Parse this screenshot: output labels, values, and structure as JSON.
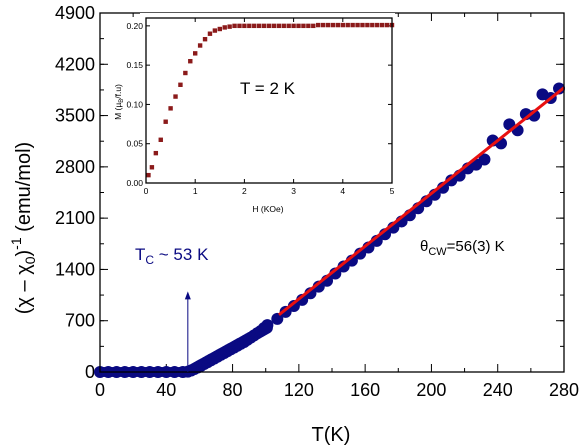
{
  "chart_data": [
    {
      "type": "scatter",
      "xlabel": "T(K)",
      "ylabel": "(χ − χ₀)⁻¹ (emu/mol)",
      "ylabel_parts": {
        "base": "(χ – χ",
        "sub": "0",
        "close": ")",
        "sup": "-1",
        "unit": " (emu/mol)"
      },
      "xlim": [
        0,
        280
      ],
      "ylim": [
        0,
        4900
      ],
      "x_ticks": [
        "0",
        "40",
        "80",
        "120",
        "160",
        "200",
        "240",
        "280"
      ],
      "y_ticks": [
        "0",
        "700",
        "1400",
        "2100",
        "2800",
        "3500",
        "4200",
        "4900"
      ],
      "series": [
        {
          "type": "scatter",
          "color": "#0a0a82",
          "points": [
            [
              0,
              0
            ],
            [
              5,
              0
            ],
            [
              10,
              0
            ],
            [
              15,
              0
            ],
            [
              20,
              0
            ],
            [
              25,
              0
            ],
            [
              30,
              0
            ],
            [
              35,
              0
            ],
            [
              40,
              0
            ],
            [
              45,
              0
            ],
            [
              50,
              0
            ],
            [
              53,
              5
            ],
            [
              55,
              20
            ],
            [
              57,
              40
            ],
            [
              59,
              62
            ],
            [
              61,
              85
            ],
            [
              63,
              110
            ],
            [
              65,
              135
            ],
            [
              67,
              160
            ],
            [
              69,
              185
            ],
            [
              71,
              210
            ],
            [
              73,
              235
            ],
            [
              75,
              260
            ],
            [
              77,
              285
            ],
            [
              79,
              310
            ],
            [
              81,
              335
            ],
            [
              83,
              360
            ],
            [
              85,
              385
            ],
            [
              87,
              410
            ],
            [
              89,
              440
            ],
            [
              91,
              470
            ],
            [
              93,
              500
            ],
            [
              95,
              530
            ],
            [
              97,
              560
            ],
            [
              99,
              600
            ],
            [
              101,
              640
            ],
            [
              107,
              725
            ],
            [
              112,
              820
            ],
            [
              117,
              900
            ],
            [
              122,
              985
            ],
            [
              127,
              1075
            ],
            [
              132,
              1165
            ],
            [
              137,
              1245
            ],
            [
              142,
              1345
            ],
            [
              147,
              1440
            ],
            [
              152,
              1520
            ],
            [
              157,
              1615
            ],
            [
              162,
              1700
            ],
            [
              167,
              1790
            ],
            [
              172,
              1880
            ],
            [
              177,
              1970
            ],
            [
              182,
              2055
            ],
            [
              187,
              2140
            ],
            [
              192,
              2235
            ],
            [
              197,
              2330
            ],
            [
              202,
              2420
            ],
            [
              207,
              2515
            ],
            [
              212,
              2615
            ],
            [
              217,
              2680
            ],
            [
              222,
              2780
            ],
            [
              227,
              2830
            ],
            [
              232,
              2900
            ],
            [
              237,
              3160
            ],
            [
              242,
              3120
            ],
            [
              247,
              3380
            ],
            [
              252,
              3300
            ],
            [
              257,
              3520
            ],
            [
              262,
              3500
            ],
            [
              267,
              3790
            ],
            [
              272,
              3740
            ],
            [
              277,
              3870
            ]
          ]
        },
        {
          "type": "line",
          "name": "fit",
          "color": "#e81010",
          "x": [
            108,
            280
          ],
          "y": [
            780,
            3880
          ]
        }
      ],
      "annotations": {
        "tc": {
          "label_main": "T",
          "label_sub": "C",
          "label_rest": " ~ 53 K",
          "x": 53,
          "y_from": 0,
          "y_to": 1100,
          "color": "#0a0a82"
        },
        "theta": {
          "label_main": "θ",
          "label_sub": "CW",
          "label_rest": "=56(3) K"
        }
      }
    },
    {
      "type": "scatter",
      "xlabel": "H (KOe)",
      "ylabel_parts": {
        "base": "M (µ",
        "sub": "B",
        "rest": "/f.u)"
      },
      "xlim": [
        0,
        5
      ],
      "ylim": [
        0,
        0.21
      ],
      "x_ticks": [
        "0",
        "1",
        "2",
        "3",
        "4",
        "5"
      ],
      "y_ticks": [
        "0.00",
        "0.05",
        "0.10",
        "0.15",
        "0.20"
      ],
      "annotation": "T = 2 K",
      "series": [
        {
          "color": "#8b1a1a",
          "points": [
            [
              0.05,
              0.01
            ],
            [
              0.12,
              0.02
            ],
            [
              0.2,
              0.038
            ],
            [
              0.3,
              0.055
            ],
            [
              0.4,
              0.078
            ],
            [
              0.5,
              0.095
            ],
            [
              0.6,
              0.11
            ],
            [
              0.7,
              0.125
            ],
            [
              0.8,
              0.14
            ],
            [
              0.9,
              0.155
            ],
            [
              1.0,
              0.165
            ],
            [
              1.1,
              0.175
            ],
            [
              1.2,
              0.183
            ],
            [
              1.3,
              0.19
            ],
            [
              1.4,
              0.194
            ],
            [
              1.5,
              0.196
            ],
            [
              1.6,
              0.198
            ],
            [
              1.7,
              0.199
            ],
            [
              1.8,
              0.2
            ],
            [
              1.9,
              0.2
            ],
            [
              2.0,
              0.2
            ],
            [
              2.1,
              0.2
            ],
            [
              2.2,
              0.2
            ],
            [
              2.3,
              0.2
            ],
            [
              2.4,
              0.2
            ],
            [
              2.5,
              0.2
            ],
            [
              2.6,
              0.2
            ],
            [
              2.7,
              0.2
            ],
            [
              2.8,
              0.2
            ],
            [
              2.9,
              0.2
            ],
            [
              3.0,
              0.2
            ],
            [
              3.1,
              0.2
            ],
            [
              3.2,
              0.2
            ],
            [
              3.3,
              0.2
            ],
            [
              3.4,
              0.2
            ],
            [
              3.5,
              0.201
            ],
            [
              3.6,
              0.201
            ],
            [
              3.7,
              0.201
            ],
            [
              3.8,
              0.201
            ],
            [
              3.9,
              0.201
            ],
            [
              4.0,
              0.201
            ],
            [
              4.1,
              0.201
            ],
            [
              4.2,
              0.201
            ],
            [
              4.3,
              0.201
            ],
            [
              4.4,
              0.201
            ],
            [
              4.5,
              0.201
            ],
            [
              4.6,
              0.201
            ],
            [
              4.7,
              0.201
            ],
            [
              4.8,
              0.201
            ],
            [
              4.9,
              0.201
            ],
            [
              5.0,
              0.201
            ]
          ]
        }
      ]
    }
  ]
}
